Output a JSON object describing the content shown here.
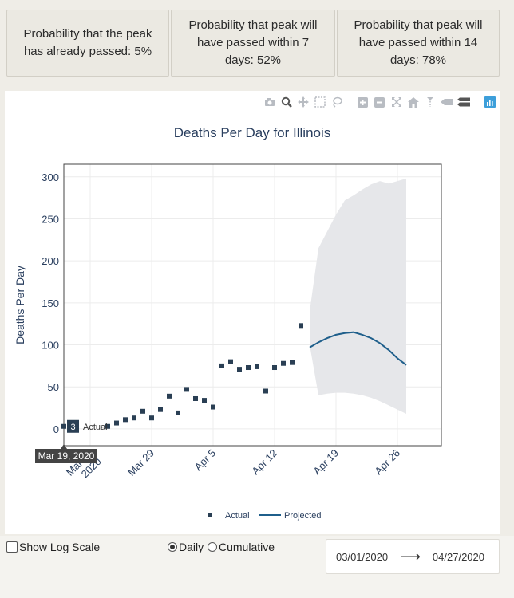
{
  "summary_cards": [
    {
      "text": "Probability that the peak has already passed: 5%"
    },
    {
      "text": "Probability that peak will have passed within 7 days: 52%"
    },
    {
      "text": "Probability that peak will have passed within 14 days: 78%"
    }
  ],
  "modebar": {
    "icons": [
      "camera-icon",
      "zoom-icon",
      "pan-icon",
      "box-select-icon",
      "lasso-icon",
      "zoom-in-icon",
      "zoom-out-icon",
      "autoscale-icon",
      "reset-axes-icon",
      "spike-lines-icon",
      "hover-closest-icon",
      "hover-compare-icon",
      "plotly-logo-icon"
    ]
  },
  "chart_data": {
    "type": "scatter",
    "title": "Deaths Per Day for Illinois",
    "xlabel": "",
    "ylabel": "Deaths Per Day",
    "x_ticks": [
      "Mar 22\n2020",
      "Mar 29",
      "Apr 5",
      "Apr 12",
      "Apr 19",
      "Apr 26"
    ],
    "x_range": [
      "2020-03-19",
      "2020-05-01"
    ],
    "ylim": [
      -20,
      315
    ],
    "y_ticks": [
      0,
      50,
      100,
      150,
      200,
      250,
      300
    ],
    "grid": true,
    "legend": {
      "placement": "bottom-center",
      "entries": [
        "Actual",
        "Projected"
      ]
    },
    "colors": {
      "actual": "#2a3f54",
      "projected": "#1f5f8b",
      "band": "#e6e7ea"
    },
    "hover": {
      "x_label": "Mar 19, 2020",
      "value": "3",
      "series": "Actual"
    },
    "series": [
      {
        "name": "Actual",
        "mode": "markers",
        "x": [
          "2020-03-19",
          "2020-03-20",
          "2020-03-21",
          "2020-03-22",
          "2020-03-23",
          "2020-03-24",
          "2020-03-25",
          "2020-03-26",
          "2020-03-27",
          "2020-03-28",
          "2020-03-29",
          "2020-03-30",
          "2020-03-31",
          "2020-04-01",
          "2020-04-02",
          "2020-04-03",
          "2020-04-04",
          "2020-04-05",
          "2020-04-06",
          "2020-04-07",
          "2020-04-08",
          "2020-04-09",
          "2020-04-10",
          "2020-04-11",
          "2020-04-12",
          "2020-04-13",
          "2020-04-14",
          "2020-04-15",
          "2020-04-16"
        ],
        "y": [
          3,
          0,
          0,
          1,
          0,
          3,
          7,
          11,
          13,
          21,
          13,
          23,
          39,
          19,
          47,
          36,
          34,
          26,
          75,
          80,
          71,
          73,
          74,
          45,
          73,
          78,
          79,
          123,
          0
        ],
        "valid": [
          true,
          false,
          false,
          false,
          false,
          true,
          true,
          true,
          true,
          true,
          true,
          true,
          true,
          true,
          true,
          true,
          true,
          true,
          true,
          true,
          true,
          true,
          true,
          true,
          true,
          true,
          true,
          true,
          false
        ]
      },
      {
        "name": "Projected",
        "mode": "line",
        "x": [
          "2020-04-16",
          "2020-04-17",
          "2020-04-18",
          "2020-04-19",
          "2020-04-20",
          "2020-04-21",
          "2020-04-22",
          "2020-04-23",
          "2020-04-24",
          "2020-04-25",
          "2020-04-26",
          "2020-04-27"
        ],
        "y": [
          97,
          103,
          108,
          112,
          114,
          115,
          112,
          108,
          102,
          94,
          84,
          76
        ]
      },
      {
        "name": "Projection interval",
        "mode": "band",
        "x": [
          "2020-04-16",
          "2020-04-17",
          "2020-04-18",
          "2020-04-19",
          "2020-04-20",
          "2020-04-21",
          "2020-04-22",
          "2020-04-23",
          "2020-04-24",
          "2020-04-25",
          "2020-04-26",
          "2020-04-27"
        ],
        "upper": [
          140,
          215,
          235,
          255,
          272,
          278,
          285,
          291,
          295,
          292,
          295,
          298
        ],
        "lower": [
          100,
          40,
          42,
          43,
          43,
          42,
          40,
          37,
          33,
          28,
          23,
          18
        ]
      }
    ]
  },
  "controls": {
    "log_scale_label": "Show Log Scale",
    "daily_label": "Daily",
    "cumulative_label": "Cumulative",
    "selected_mode": "Daily",
    "start_date": "03/01/2020",
    "end_date": "04/27/2020",
    "arrow": "⟶"
  }
}
